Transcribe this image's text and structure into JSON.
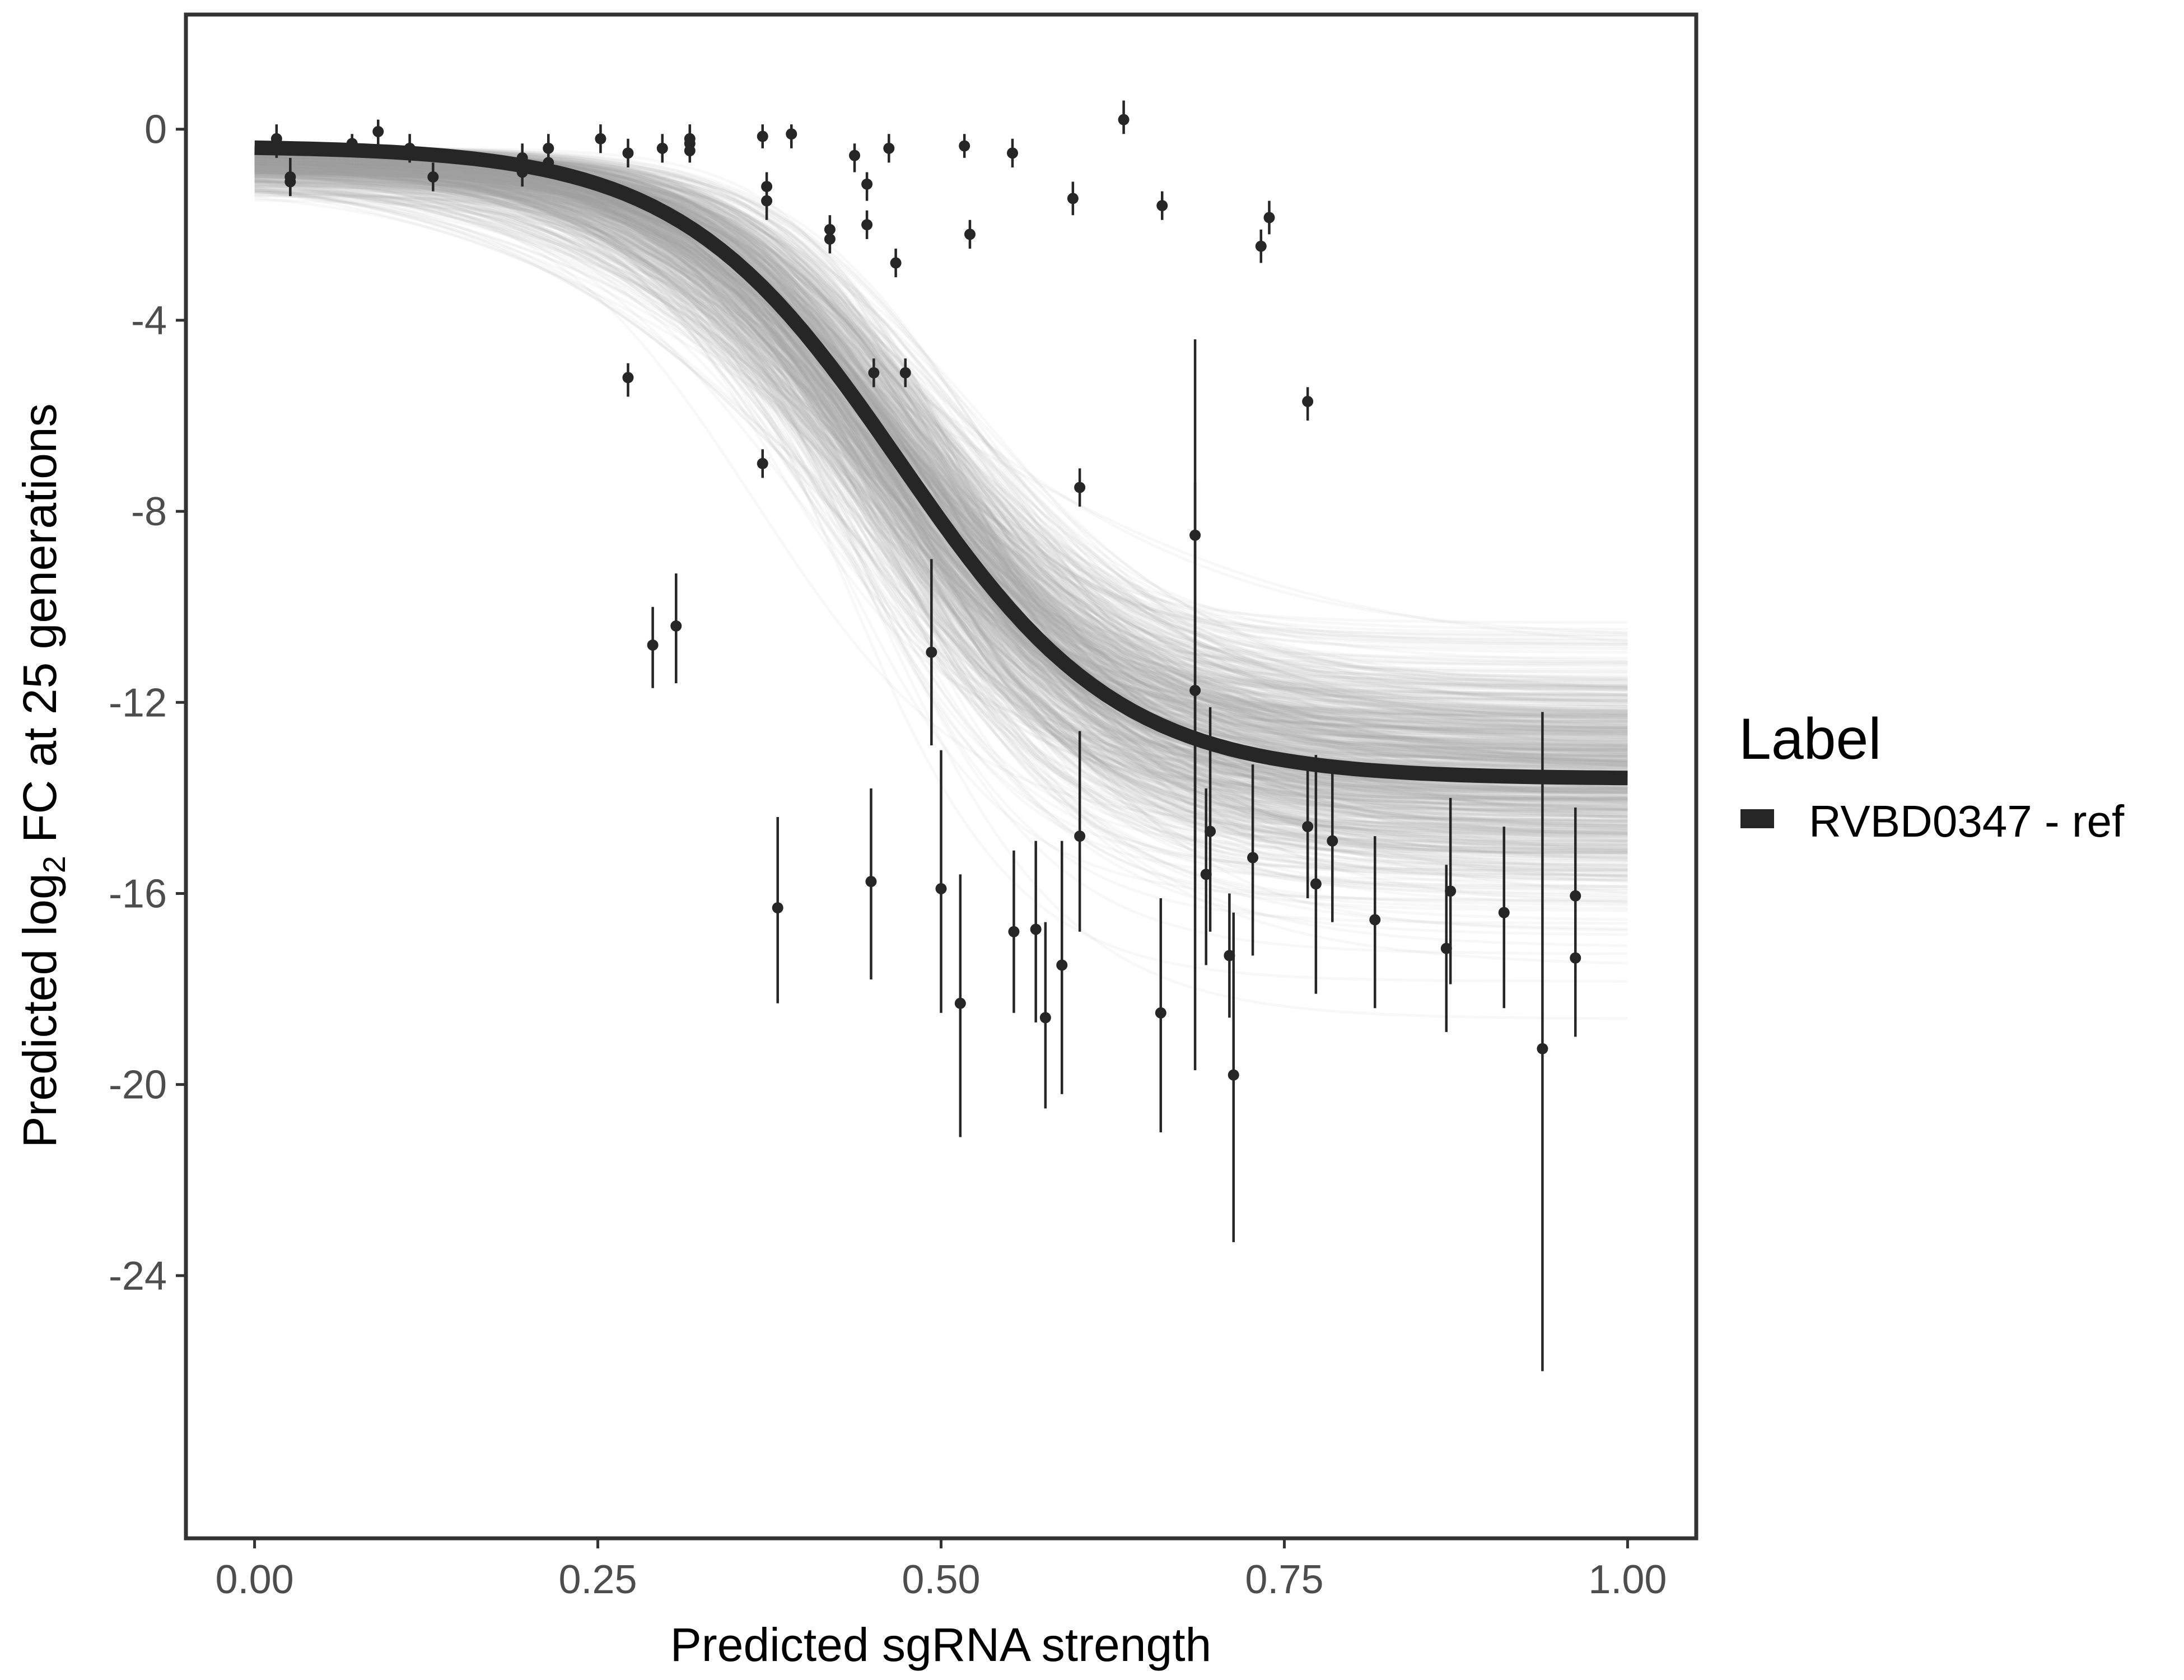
{
  "chart_data": {
    "type": "line",
    "xlabel": "Predicted sgRNA strength",
    "ylabel_parts": [
      "Predicted  log",
      "2",
      " FC at 25 generations"
    ],
    "xlim": [
      -0.05,
      1.05
    ],
    "ylim": [
      -29.5,
      2.4
    ],
    "x_ticks": [
      0,
      0.25,
      0.5,
      0.75,
      1
    ],
    "x_tick_labels": [
      "0.00",
      "0.25",
      "0.50",
      "0.75",
      "1.00"
    ],
    "y_ticks": [
      0,
      -4,
      -8,
      -12,
      -16,
      -20,
      -24
    ],
    "y_tick_labels": [
      "0",
      "-4",
      "-8",
      "-12",
      "-16",
      "-20",
      "-24"
    ],
    "grid": false,
    "legend": {
      "title": "Label",
      "position": "right",
      "entries": [
        {
          "label": "RVBD0347 - ref",
          "color": "#262626"
        }
      ]
    },
    "colors": {
      "fit_line": "#262626",
      "posterior_lines": "#9e9e9e",
      "points": "#262626",
      "panel_border": "#333333"
    },
    "fit_curve": {
      "upper": -0.35,
      "lower": -13.6,
      "midpoint": 0.47,
      "slope": 12.5
    },
    "posterior_draws": {
      "count": 700,
      "x_range": [
        0,
        1
      ]
    },
    "series": [
      {
        "name": "RVBD0347 - ref",
        "points": [
          {
            "x": 0.016,
            "y": -0.2,
            "lo": -0.6,
            "hi": 0.1
          },
          {
            "x": 0.026,
            "y": -1.0,
            "lo": -1.4,
            "hi": -0.6
          },
          {
            "x": 0.026,
            "y": -1.1,
            "lo": -1.4,
            "hi": -0.8
          },
          {
            "x": 0.071,
            "y": -0.3,
            "lo": -0.5,
            "hi": -0.1
          },
          {
            "x": 0.09,
            "y": -0.05,
            "lo": -0.4,
            "hi": 0.2
          },
          {
            "x": 0.113,
            "y": -0.4,
            "lo": -0.7,
            "hi": -0.1
          },
          {
            "x": 0.13,
            "y": -1.0,
            "lo": -1.3,
            "hi": -0.7
          },
          {
            "x": 0.195,
            "y": -0.6,
            "lo": -0.9,
            "hi": -0.3
          },
          {
            "x": 0.195,
            "y": -0.9,
            "lo": -1.2,
            "hi": -0.6
          },
          {
            "x": 0.214,
            "y": -0.4,
            "lo": -0.7,
            "hi": -0.1
          },
          {
            "x": 0.214,
            "y": -0.7,
            "lo": -1.0,
            "hi": -0.4
          },
          {
            "x": 0.252,
            "y": -0.2,
            "lo": -0.5,
            "hi": 0.1
          },
          {
            "x": 0.272,
            "y": -0.5,
            "lo": -0.8,
            "hi": -0.2
          },
          {
            "x": 0.272,
            "y": -5.2,
            "lo": -5.6,
            "hi": -4.9
          },
          {
            "x": 0.29,
            "y": -10.8,
            "lo": -11.7,
            "hi": -10.0
          },
          {
            "x": 0.297,
            "y": -0.4,
            "lo": -0.7,
            "hi": -0.1
          },
          {
            "x": 0.307,
            "y": -10.4,
            "lo": -11.6,
            "hi": -9.3
          },
          {
            "x": 0.317,
            "y": -0.3,
            "lo": -0.6,
            "hi": 0.0
          },
          {
            "x": 0.317,
            "y": -0.45,
            "lo": -0.7,
            "hi": -0.2
          },
          {
            "x": 0.317,
            "y": -0.2,
            "lo": -0.5,
            "hi": 0.1
          },
          {
            "x": 0.37,
            "y": -0.15,
            "lo": -0.4,
            "hi": 0.1
          },
          {
            "x": 0.37,
            "y": -7.0,
            "lo": -7.3,
            "hi": -6.7
          },
          {
            "x": 0.373,
            "y": -1.2,
            "lo": -1.5,
            "hi": -0.9
          },
          {
            "x": 0.373,
            "y": -1.5,
            "lo": -1.9,
            "hi": -1.2
          },
          {
            "x": 0.381,
            "y": -16.3,
            "lo": -18.3,
            "hi": -14.4
          },
          {
            "x": 0.391,
            "y": -0.1,
            "lo": -0.4,
            "hi": 0.1
          },
          {
            "x": 0.419,
            "y": -2.1,
            "lo": -2.4,
            "hi": -1.8
          },
          {
            "x": 0.419,
            "y": -2.3,
            "lo": -2.6,
            "hi": -2.0
          },
          {
            "x": 0.437,
            "y": -0.55,
            "lo": -0.9,
            "hi": -0.3
          },
          {
            "x": 0.446,
            "y": -1.15,
            "lo": -1.5,
            "hi": -0.9
          },
          {
            "x": 0.446,
            "y": -2.0,
            "lo": -2.3,
            "hi": -1.7
          },
          {
            "x": 0.449,
            "y": -15.75,
            "lo": -17.8,
            "hi": -13.8
          },
          {
            "x": 0.451,
            "y": -5.1,
            "lo": -5.4,
            "hi": -4.8
          },
          {
            "x": 0.462,
            "y": -0.4,
            "lo": -0.7,
            "hi": -0.1
          },
          {
            "x": 0.467,
            "y": -2.8,
            "lo": -3.1,
            "hi": -2.5
          },
          {
            "x": 0.474,
            "y": -5.1,
            "lo": -5.4,
            "hi": -4.8
          },
          {
            "x": 0.493,
            "y": -10.95,
            "lo": -12.9,
            "hi": -9.0
          },
          {
            "x": 0.5,
            "y": -15.9,
            "lo": -18.5,
            "hi": -13.0
          },
          {
            "x": 0.514,
            "y": -18.3,
            "lo": -21.1,
            "hi": -15.6
          },
          {
            "x": 0.517,
            "y": -0.35,
            "lo": -0.6,
            "hi": -0.1
          },
          {
            "x": 0.521,
            "y": -2.2,
            "lo": -2.5,
            "hi": -1.9
          },
          {
            "x": 0.552,
            "y": -0.5,
            "lo": -0.8,
            "hi": -0.2
          },
          {
            "x": 0.553,
            "y": -16.8,
            "lo": -18.5,
            "hi": -15.1
          },
          {
            "x": 0.569,
            "y": -16.75,
            "lo": -18.7,
            "hi": -14.9
          },
          {
            "x": 0.576,
            "y": -18.6,
            "lo": -20.5,
            "hi": -16.6
          },
          {
            "x": 0.588,
            "y": -17.5,
            "lo": -20.2,
            "hi": -14.9
          },
          {
            "x": 0.596,
            "y": -1.45,
            "lo": -1.8,
            "hi": -1.1
          },
          {
            "x": 0.601,
            "y": -7.5,
            "lo": -7.9,
            "hi": -7.1
          },
          {
            "x": 0.601,
            "y": -14.8,
            "lo": -16.8,
            "hi": -12.6
          },
          {
            "x": 0.633,
            "y": 0.2,
            "lo": -0.1,
            "hi": 0.6
          },
          {
            "x": 0.66,
            "y": -18.5,
            "lo": -21.0,
            "hi": -16.1
          },
          {
            "x": 0.661,
            "y": -1.6,
            "lo": -1.9,
            "hi": -1.3
          },
          {
            "x": 0.685,
            "y": -8.5,
            "lo": -19.7,
            "hi": -4.4
          },
          {
            "x": 0.685,
            "y": -11.75,
            "lo": -14.9,
            "hi": -7.4
          },
          {
            "x": 0.693,
            "y": -15.6,
            "lo": -17.5,
            "hi": -13.8
          },
          {
            "x": 0.696,
            "y": -14.7,
            "lo": -16.8,
            "hi": -12.1
          },
          {
            "x": 0.71,
            "y": -17.3,
            "lo": -18.6,
            "hi": -16.0
          },
          {
            "x": 0.713,
            "y": -19.8,
            "lo": -23.3,
            "hi": -16.4
          },
          {
            "x": 0.727,
            "y": -15.25,
            "lo": -17.3,
            "hi": -13.3
          },
          {
            "x": 0.733,
            "y": -2.45,
            "lo": -2.8,
            "hi": -2.1
          },
          {
            "x": 0.739,
            "y": -1.85,
            "lo": -2.2,
            "hi": -1.5
          },
          {
            "x": 0.767,
            "y": -5.7,
            "lo": -6.1,
            "hi": -5.4
          },
          {
            "x": 0.767,
            "y": -14.6,
            "lo": -16.1,
            "hi": -13.2
          },
          {
            "x": 0.773,
            "y": -15.8,
            "lo": -18.1,
            "hi": -13.1
          },
          {
            "x": 0.785,
            "y": -14.9,
            "lo": -16.6,
            "hi": -13.3
          },
          {
            "x": 0.816,
            "y": -16.55,
            "lo": -18.4,
            "hi": -14.8
          },
          {
            "x": 0.868,
            "y": -17.15,
            "lo": -18.9,
            "hi": -15.4
          },
          {
            "x": 0.871,
            "y": -15.95,
            "lo": -17.9,
            "hi": -14.0
          },
          {
            "x": 0.91,
            "y": -16.4,
            "lo": -18.4,
            "hi": -14.6
          },
          {
            "x": 0.938,
            "y": -19.25,
            "lo": -26.0,
            "hi": -12.2
          },
          {
            "x": 0.962,
            "y": -16.05,
            "lo": -17.6,
            "hi": -14.2
          },
          {
            "x": 0.962,
            "y": -17.35,
            "lo": -19.0,
            "hi": -15.7
          }
        ]
      }
    ]
  }
}
